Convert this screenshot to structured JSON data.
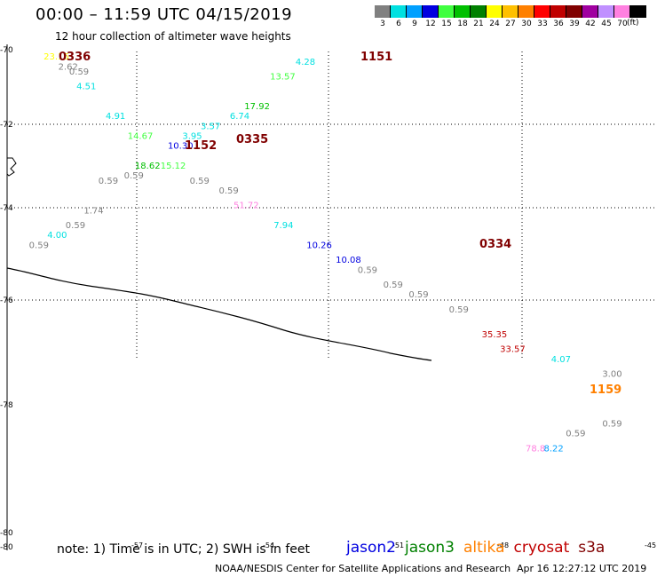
{
  "header": {
    "title": "00:00 – 11:59 UTC 04/15/2019",
    "subtitle": "12 hour collection of altimeter wave heights",
    "unit": "(ft)"
  },
  "color_scale": [
    {
      "label": "3",
      "color": "#808080"
    },
    {
      "label": "6",
      "color": "#00e0e0"
    },
    {
      "label": "9",
      "color": "#00a0ff"
    },
    {
      "label": "12",
      "color": "#0000e0"
    },
    {
      "label": "15",
      "color": "#40ff40"
    },
    {
      "label": "18",
      "color": "#00c000"
    },
    {
      "label": "21",
      "color": "#008000"
    },
    {
      "label": "24",
      "color": "#ffff00"
    },
    {
      "label": "27",
      "color": "#ffc000"
    },
    {
      "label": "30",
      "color": "#ff8000"
    },
    {
      "label": "33",
      "color": "#ff0000"
    },
    {
      "label": "36",
      "color": "#c00000"
    },
    {
      "label": "39",
      "color": "#800000"
    },
    {
      "label": "42",
      "color": "#a000a0"
    },
    {
      "label": "45",
      "color": "#c090ff"
    },
    {
      "label": "70",
      "color": "#ff80e0"
    },
    {
      "label": "",
      "color": "#000000"
    }
  ],
  "chart_data": {
    "type": "scatter",
    "title": "00:00 – 11:59 UTC 04/15/2019",
    "subtitle": "12 hour collection of altimeter wave heights",
    "units": "ft",
    "y_ticks": [
      "-70",
      "-72",
      "-74",
      "-76",
      "-78",
      "-80",
      "-80"
    ],
    "x_ticks": [
      "-57",
      "-54",
      "-51",
      "-48",
      "-45"
    ],
    "observations": [
      {
        "value": "23.16",
        "color": "#ffff00",
        "lon": -63.6,
        "lat": -70.1
      },
      {
        "value": "2.62",
        "color": "#808080",
        "lon": -63.2,
        "lat": -70.3
      },
      {
        "value": "0.59",
        "color": "#808080",
        "lon": -62.9,
        "lat": -70.4
      },
      {
        "value": "4.51",
        "color": "#00e0e0",
        "lon": -62.7,
        "lat": -70.7
      },
      {
        "value": "4.91",
        "color": "#00e0e0",
        "lon": -61.9,
        "lat": -71.3
      },
      {
        "value": "14.67",
        "color": "#40ff40",
        "lon": -61.3,
        "lat": -71.7
      },
      {
        "value": "10.30",
        "color": "#0000e0",
        "lon": -60.2,
        "lat": -71.9
      },
      {
        "value": "3.95",
        "color": "#00e0e0",
        "lon": -59.8,
        "lat": -71.7
      },
      {
        "value": "3.57",
        "color": "#00e0e0",
        "lon": -59.3,
        "lat": -71.5
      },
      {
        "value": "6.74",
        "color": "#00e0e0",
        "lon": -58.5,
        "lat": -71.3
      },
      {
        "value": "17.92",
        "color": "#00c000",
        "lon": -58.1,
        "lat": -71.1
      },
      {
        "value": "13.57",
        "color": "#40ff40",
        "lon": -57.4,
        "lat": -70.5
      },
      {
        "value": "4.28",
        "color": "#00e0e0",
        "lon": -56.7,
        "lat": -70.2
      },
      {
        "value": "18.62",
        "color": "#00c000",
        "lon": -61.1,
        "lat": -72.3
      },
      {
        "value": "0.59",
        "color": "#808080",
        "lon": -61.4,
        "lat": -72.5
      },
      {
        "value": "0.59",
        "color": "#808080",
        "lon": -62.1,
        "lat": -72.6
      },
      {
        "value": "15.12",
        "color": "#40ff40",
        "lon": -60.4,
        "lat": -72.3
      },
      {
        "value": "0.59",
        "color": "#808080",
        "lon": -59.6,
        "lat": -72.6
      },
      {
        "value": "0.59",
        "color": "#808080",
        "lon": -58.8,
        "lat": -72.8
      },
      {
        "value": "51.72",
        "color": "#ff80e0",
        "lon": -58.4,
        "lat": -73.1
      },
      {
        "value": "7.94",
        "color": "#00e0e0",
        "lon": -57.3,
        "lat": -73.5
      },
      {
        "value": "10.26",
        "color": "#0000e0",
        "lon": -56.4,
        "lat": -73.9
      },
      {
        "value": "10.08",
        "color": "#0000e0",
        "lon": -55.6,
        "lat": -74.2
      },
      {
        "value": "0.59",
        "color": "#808080",
        "lon": -55.0,
        "lat": -74.4
      },
      {
        "value": "0.59",
        "color": "#808080",
        "lon": -54.3,
        "lat": -74.7
      },
      {
        "value": "0.59",
        "color": "#808080",
        "lon": -53.6,
        "lat": -74.9
      },
      {
        "value": "0.59",
        "color": "#808080",
        "lon": -52.5,
        "lat": -75.2
      },
      {
        "value": "35.35",
        "color": "#c00000",
        "lon": -51.6,
        "lat": -75.7
      },
      {
        "value": "33.57",
        "color": "#c00000",
        "lon": -51.1,
        "lat": -76.0
      },
      {
        "value": "4.07",
        "color": "#00e0e0",
        "lon": -49.7,
        "lat": -76.2
      },
      {
        "value": "3.00",
        "color": "#808080",
        "lon": -48.3,
        "lat": -76.5
      },
      {
        "value": "0.59",
        "color": "#808080",
        "lon": -48.3,
        "lat": -77.5
      },
      {
        "value": "0.59",
        "color": "#808080",
        "lon": -49.3,
        "lat": -77.7
      },
      {
        "value": "78.8",
        "color": "#ff80e0",
        "lon": -50.4,
        "lat": -78.0
      },
      {
        "value": "8.22",
        "color": "#00a0ff",
        "lon": -49.9,
        "lat": -78.0
      },
      {
        "value": "1.74",
        "color": "#808080",
        "lon": -62.5,
        "lat": -73.2
      },
      {
        "value": "0.59",
        "color": "#808080",
        "lon": -63.0,
        "lat": -73.5
      },
      {
        "value": "4.00",
        "color": "#00e0e0",
        "lon": -63.5,
        "lat": -73.7
      },
      {
        "value": "0.59",
        "color": "#808080",
        "lon": -64.0,
        "lat": -73.9
      }
    ],
    "pass_times": [
      {
        "time": "0336",
        "color": "#800000"
      },
      {
        "time": "1151",
        "color": "#800000"
      },
      {
        "time": "1152",
        "color": "#800000"
      },
      {
        "time": "0335",
        "color": "#800000"
      },
      {
        "time": "0334",
        "color": "#800000"
      },
      {
        "time": "1159",
        "color": "#ff8000"
      }
    ]
  },
  "footer": {
    "note": "note: 1) Time is in UTC; 2) SWH is in feet",
    "satellites": [
      {
        "name": "jason2",
        "color": "#0000e0"
      },
      {
        "name": "jason3",
        "color": "#008000"
      },
      {
        "name": "altika",
        "color": "#ff8000"
      },
      {
        "name": "cryosat",
        "color": "#c00000"
      },
      {
        "name": "s3a",
        "color": "#800000"
      }
    ],
    "credit": "NOAA/NESDIS Center for Satellite Applications and Research",
    "timestamp": "Apr 16 12:27:12 UTC 2019"
  }
}
